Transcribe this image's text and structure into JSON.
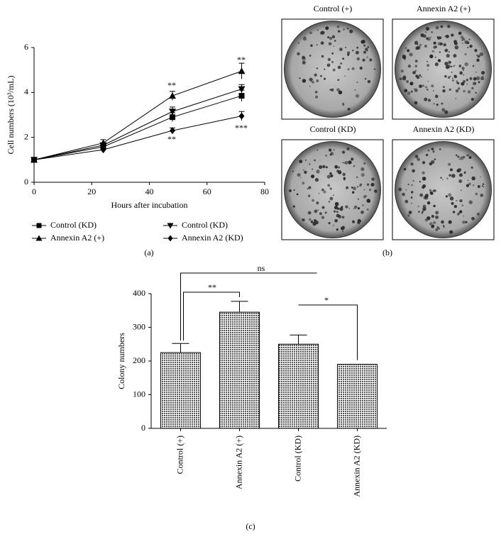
{
  "chart_data": [
    {
      "type": "line",
      "xlabel": "Hours after incubation",
      "ylabel": "Cell numbers (10³/mL)",
      "x": [
        0,
        24,
        48,
        72
      ],
      "xlim": [
        0,
        80
      ],
      "xticks": [
        0,
        20,
        40,
        60,
        80
      ],
      "ylim": [
        0,
        6
      ],
      "yticks": [
        0,
        2,
        4,
        6
      ],
      "series": [
        {
          "name": "Control (KD)",
          "marker": "square",
          "color": "#000000",
          "values": [
            1,
            1.58,
            2.9,
            3.85
          ],
          "errors": [
            0,
            0.15,
            0.2,
            0.25
          ]
        },
        {
          "name": "Annexin A2 (+)",
          "marker": "triangle-up",
          "color": "#000000",
          "values": [
            1,
            1.75,
            3.85,
            4.95
          ],
          "errors": [
            0,
            0.15,
            0.2,
            0.35
          ]
        },
        {
          "name": "Control (KD)",
          "marker": "triangle-down",
          "color": "#000000",
          "values": [
            1,
            1.65,
            3.15,
            4.15
          ],
          "errors": [
            0,
            0.1,
            0.2,
            0.2
          ]
        },
        {
          "name": "Annexin A2 (KD)",
          "marker": "diamond",
          "color": "#000000",
          "values": [
            1,
            1.45,
            2.3,
            2.95
          ],
          "errors": [
            0,
            0.08,
            0.12,
            0.2
          ]
        }
      ],
      "annotations": [
        "**",
        "**",
        "***",
        "**"
      ]
    },
    {
      "type": "bar",
      "ylabel": "Colony numbers",
      "categories": [
        "Control (+)",
        "Annexin A2 (+)",
        "Control (KD)",
        "Annexin A2 (KD)"
      ],
      "values": [
        225,
        345,
        250,
        190
      ],
      "errors": [
        27,
        32,
        27,
        0
      ],
      "ylim": [
        0,
        400
      ],
      "yticks": [
        0,
        100,
        200,
        300,
        400
      ],
      "annotations": [
        "ns",
        "**",
        "*"
      ]
    }
  ],
  "dishes": [
    {
      "label": "Control (+)"
    },
    {
      "label": "Annexin A2 (+)"
    },
    {
      "label": "Control (KD)"
    },
    {
      "label": "Annexin A2 (KD)"
    }
  ],
  "panel_labels": [
    "(a)",
    "(b)",
    "(c)"
  ]
}
